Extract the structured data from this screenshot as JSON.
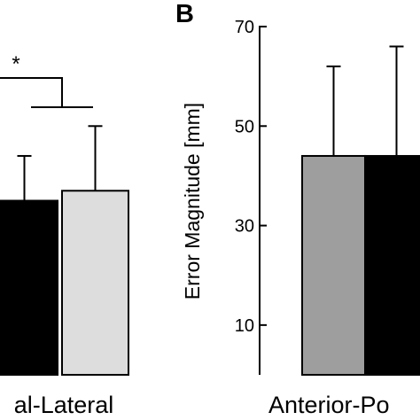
{
  "colors": {
    "black": "#000000",
    "gray": "#9e9e9e",
    "light_gray": "#dddddd",
    "background": "#ffffff"
  },
  "chart_data": [
    {
      "panel": "",
      "type": "bar",
      "xlabel": "al-Lateral",
      "ylabel": "",
      "ylim": [
        0,
        70
      ],
      "significance": {
        "label": "*"
      },
      "bars": [
        {
          "value": 35,
          "error": 9,
          "color": "black"
        },
        {
          "value": 37,
          "error": 13,
          "color": "light_gray"
        }
      ]
    },
    {
      "panel": "B",
      "type": "bar",
      "xlabel": "Anterior-Po",
      "ylabel": "Error Magnitude [mm]",
      "ylim": [
        0,
        70
      ],
      "yticks": [
        "10",
        "30",
        "50",
        "70"
      ],
      "bars": [
        {
          "value": 44,
          "error": 18,
          "color": "gray"
        },
        {
          "value": 44,
          "error": 22,
          "color": "black"
        }
      ]
    }
  ]
}
